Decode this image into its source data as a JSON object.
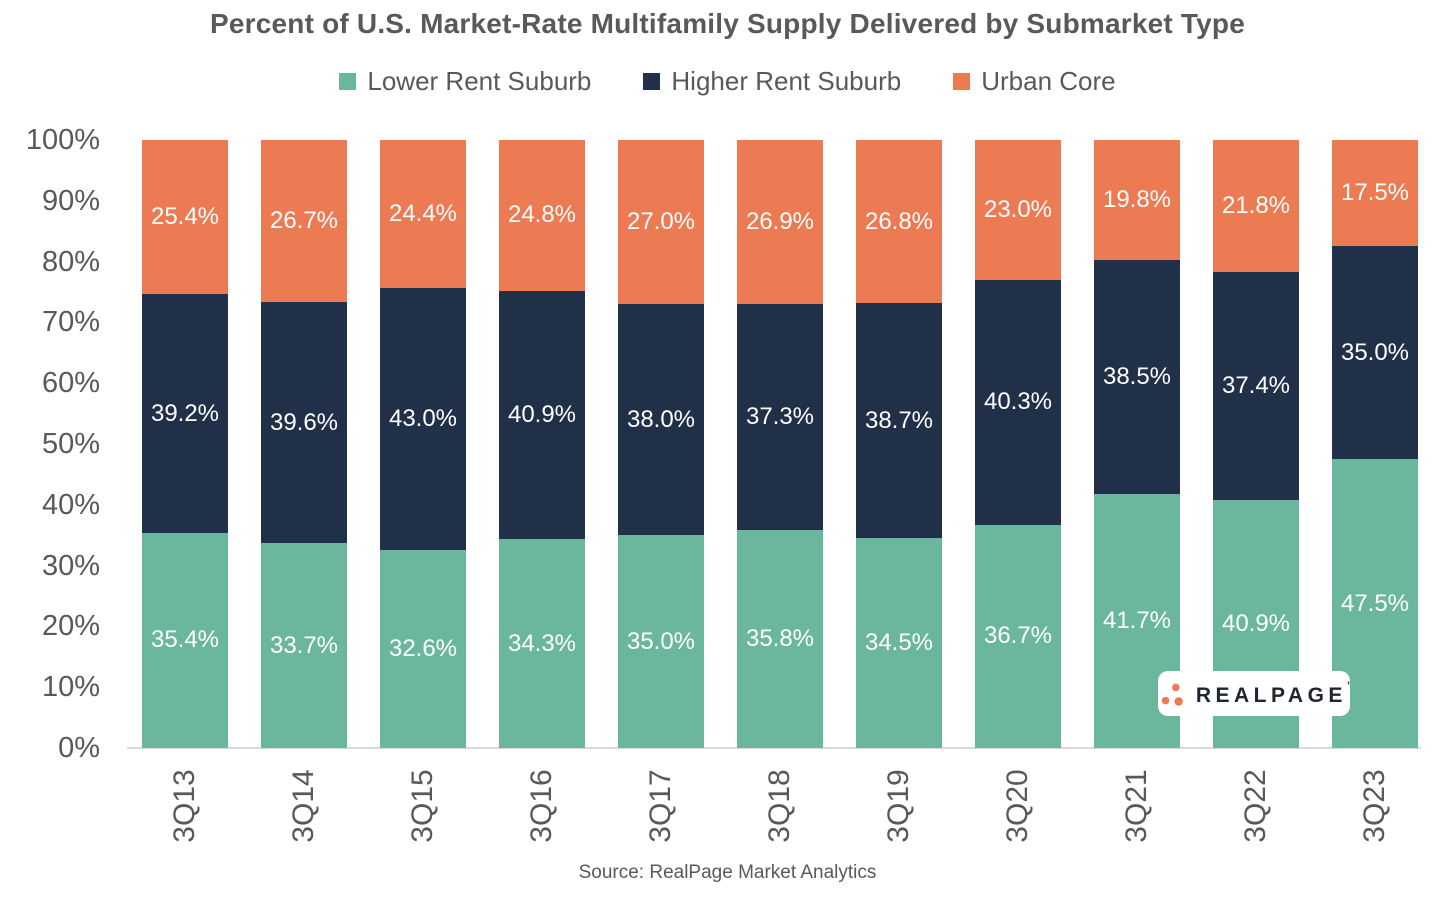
{
  "title": "Percent of U.S. Market-Rate Multifamily Supply Delivered by Submarket Type",
  "source": "Source: RealPage Market Analytics",
  "logo": {
    "text": "REALPAGE",
    "tm": "’"
  },
  "colors": {
    "lower_rent_suburb": "#6BB79D",
    "higher_rent_suburb": "#1F3048",
    "urban_core": "#EC7A52",
    "text_gray": "#595959",
    "axis_line": "#D9D9D9",
    "bar_label": "#FFFFFF"
  },
  "chart_data": {
    "type": "bar",
    "stacked": true,
    "title": "Percent of U.S. Market-Rate Multifamily Supply Delivered by Submarket Type",
    "xlabel": "",
    "ylabel": "",
    "ylim": [
      0,
      100
    ],
    "grid": false,
    "legend_position": "top",
    "value_label_suffix": "%",
    "categories": [
      "3Q13",
      "3Q14",
      "3Q15",
      "3Q16",
      "3Q17",
      "3Q18",
      "3Q19",
      "3Q20",
      "3Q21",
      "3Q22",
      "3Q23"
    ],
    "series": [
      {
        "key": "lower-rent-suburb",
        "name": "Lower Rent Suburb",
        "color": "#6BB79D",
        "values": [
          35.4,
          33.7,
          32.6,
          34.3,
          35.0,
          35.8,
          34.5,
          36.7,
          41.7,
          40.9,
          47.5
        ]
      },
      {
        "key": "higher-rent-suburb",
        "name": "Higher Rent Suburb",
        "color": "#1F3048",
        "values": [
          39.2,
          39.6,
          43.0,
          40.9,
          38.0,
          37.3,
          38.7,
          40.3,
          38.5,
          37.4,
          35.0
        ]
      },
      {
        "key": "urban-core",
        "name": "Urban Core",
        "color": "#EC7A52",
        "values": [
          25.4,
          26.7,
          24.4,
          24.8,
          27.0,
          26.9,
          26.8,
          23.0,
          19.8,
          21.8,
          17.5
        ]
      }
    ],
    "yticks": [
      {
        "value": 0,
        "label": "0%"
      },
      {
        "value": 10,
        "label": "10%"
      },
      {
        "value": 20,
        "label": "20%"
      },
      {
        "value": 30,
        "label": "30%"
      },
      {
        "value": 40,
        "label": "40%"
      },
      {
        "value": 50,
        "label": "50%"
      },
      {
        "value": 60,
        "label": "60%"
      },
      {
        "value": 70,
        "label": "70%"
      },
      {
        "value": 80,
        "label": "80%"
      },
      {
        "value": 90,
        "label": "90%"
      },
      {
        "value": 100,
        "label": "100%"
      }
    ]
  }
}
